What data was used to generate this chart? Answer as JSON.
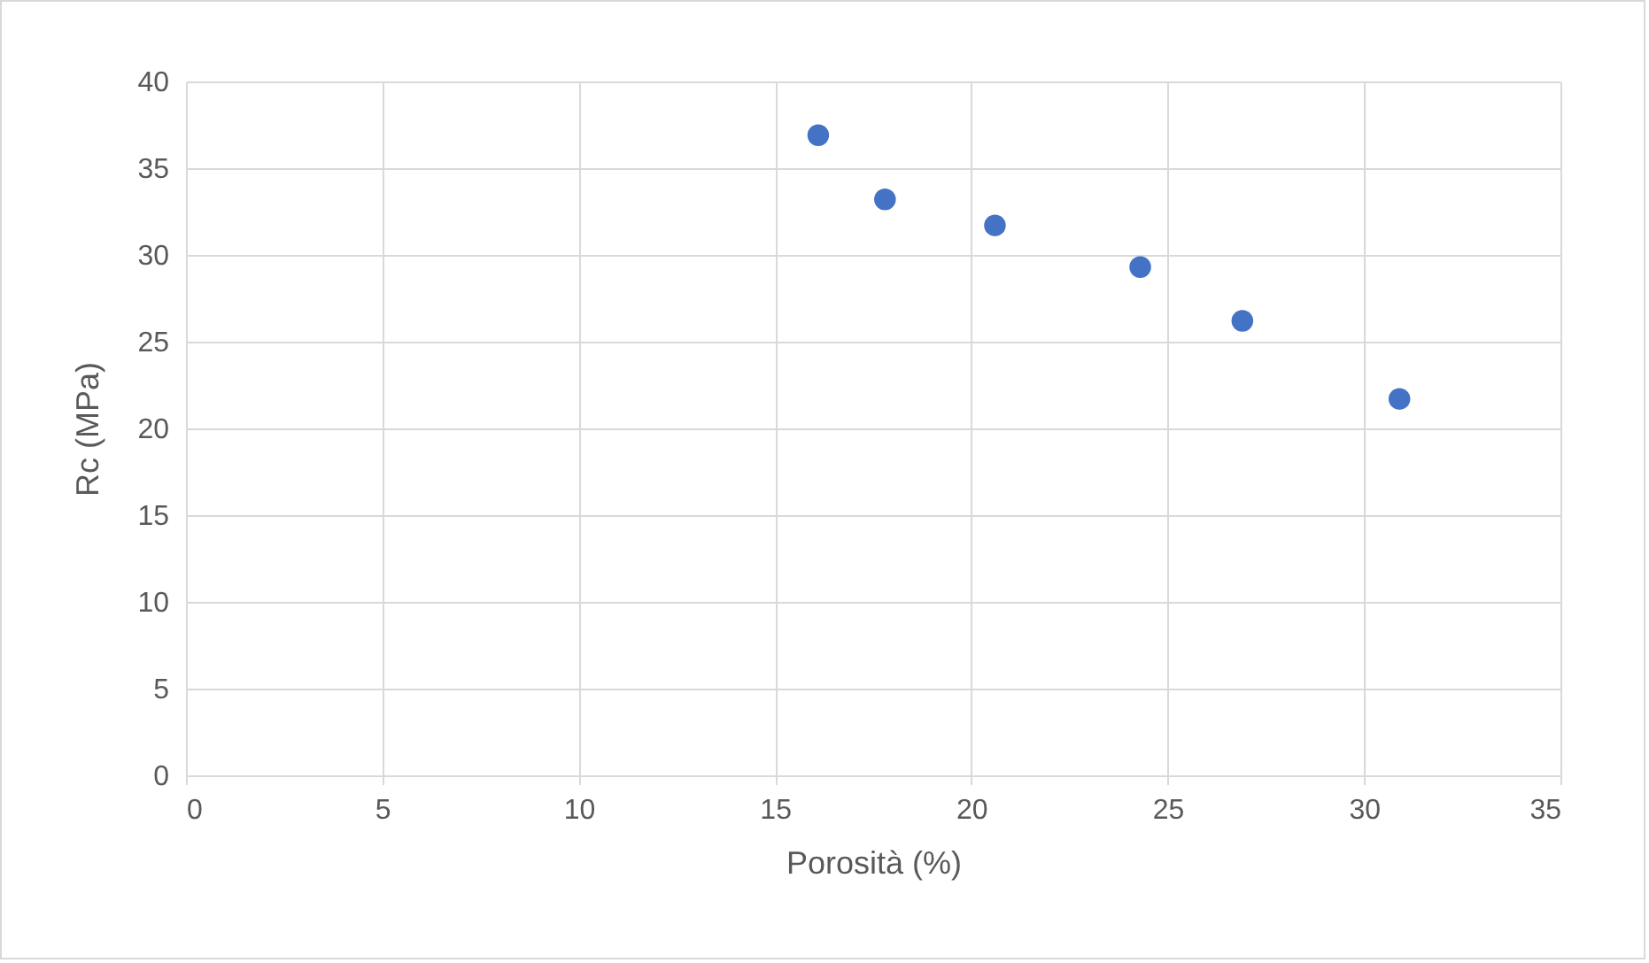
{
  "chart_data": {
    "type": "scatter",
    "xlabel": "Porosità (%)",
    "ylabel": "Rc (MPa)",
    "x": [
      16.1,
      17.8,
      20.6,
      24.3,
      26.9,
      30.9
    ],
    "series": [
      {
        "color": "#4472c4",
        "values": [
          36.9,
          33.2,
          31.7,
          29.3,
          26.2,
          21.7
        ]
      }
    ],
    "xlim": [
      0,
      35
    ],
    "xticks": [
      0,
      5,
      10,
      15,
      20,
      25,
      30,
      35
    ],
    "ylim": [
      0,
      40
    ],
    "yticks": [
      0,
      5,
      10,
      15,
      20,
      25,
      30,
      35,
      40
    ],
    "grid": true,
    "marker": "circle",
    "legend": false
  }
}
